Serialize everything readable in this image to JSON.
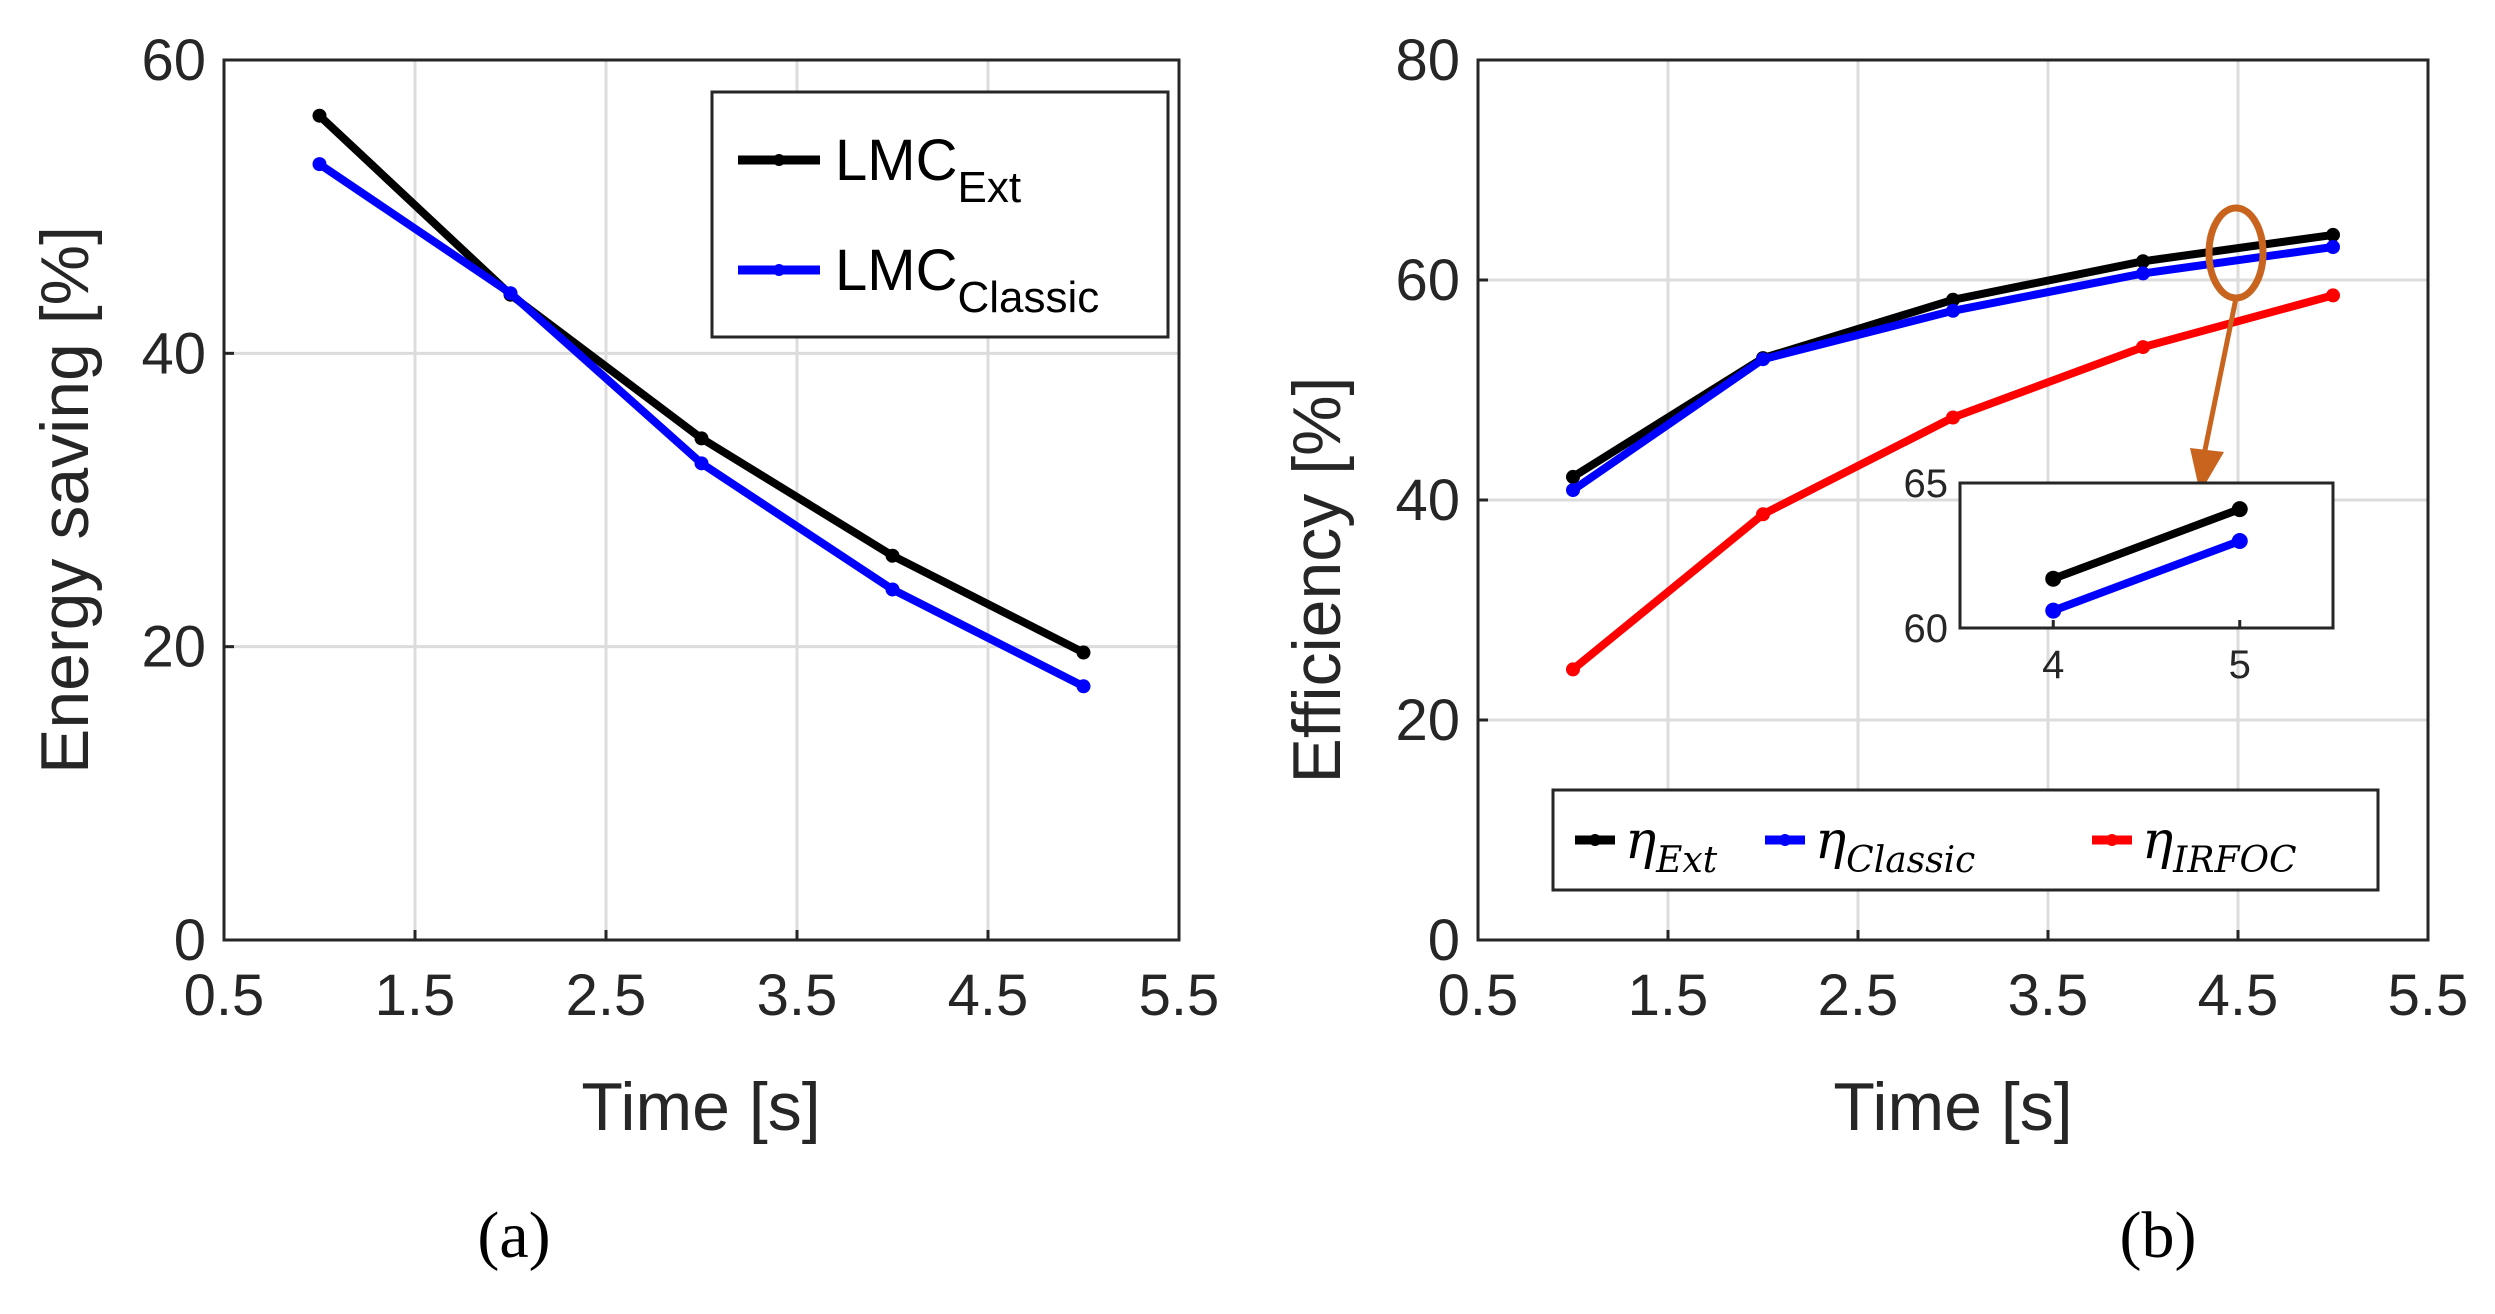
{
  "chart_data": [
    {
      "type": "line",
      "id": "a",
      "caption": "(a)",
      "xlabel": "Time [s]",
      "ylabel": "Energy saving [%]",
      "xlim": [
        0.5,
        5.5
      ],
      "ylim": [
        0,
        60
      ],
      "xticks": [
        0.5,
        1.5,
        2.5,
        3.5,
        4.5,
        5.5
      ],
      "xtick_labels": [
        "0.5",
        "1.5",
        "2.5",
        "3.5",
        "4.5",
        "5.5"
      ],
      "yticks": [
        0,
        20,
        40,
        60
      ],
      "ytick_labels": [
        "0",
        "20",
        "40",
        "60"
      ],
      "legend_position": "top-right",
      "grid": true,
      "x": [
        1,
        2,
        3,
        4,
        5
      ],
      "series": [
        {
          "name": "LMC",
          "subscript": "Ext",
          "color": "#000000",
          "values": [
            56.2,
            44.0,
            34.2,
            26.2,
            19.6
          ]
        },
        {
          "name": "LMC",
          "subscript": "Classic",
          "color": "#0000ff",
          "values": [
            52.9,
            44.1,
            32.5,
            23.9,
            17.3
          ]
        }
      ]
    },
    {
      "type": "line",
      "id": "b",
      "caption": "(b)",
      "xlabel": "Time [s]",
      "ylabel": "Efficiency [%]",
      "xlim": [
        0.5,
        5.5
      ],
      "ylim": [
        0,
        80
      ],
      "xticks": [
        0.5,
        1.5,
        2.5,
        3.5,
        4.5,
        5.5
      ],
      "xtick_labels": [
        "0.5",
        "1.5",
        "2.5",
        "3.5",
        "4.5",
        "5.5"
      ],
      "yticks": [
        0,
        20,
        40,
        60,
        80
      ],
      "ytick_labels": [
        "0",
        "20",
        "40",
        "60",
        "80"
      ],
      "legend_position": "bottom",
      "grid": true,
      "x": [
        1,
        2,
        3,
        4,
        5
      ],
      "series": [
        {
          "name": "η",
          "subscript": "Ext",
          "color": "#000000",
          "values": [
            42.1,
            52.9,
            58.2,
            61.7,
            64.1
          ]
        },
        {
          "name": "η",
          "subscript": "Classic",
          "color": "#0000ff",
          "values": [
            40.9,
            52.8,
            57.2,
            60.6,
            63.0
          ]
        },
        {
          "name": "η",
          "subscript": "IRFOC",
          "color": "#ff0000",
          "values": [
            24.6,
            38.7,
            47.5,
            53.9,
            58.6
          ]
        }
      ],
      "inset": {
        "xlim": [
          3.5,
          5.5
        ],
        "ylim": [
          60,
          65
        ],
        "xticks": [
          4,
          5
        ],
        "xtick_labels": [
          "4",
          "5"
        ],
        "yticks": [
          60,
          65
        ],
        "ytick_labels": [
          "60",
          "65"
        ],
        "x": [
          4,
          5
        ],
        "highlight_color": "#c8641e"
      }
    }
  ]
}
